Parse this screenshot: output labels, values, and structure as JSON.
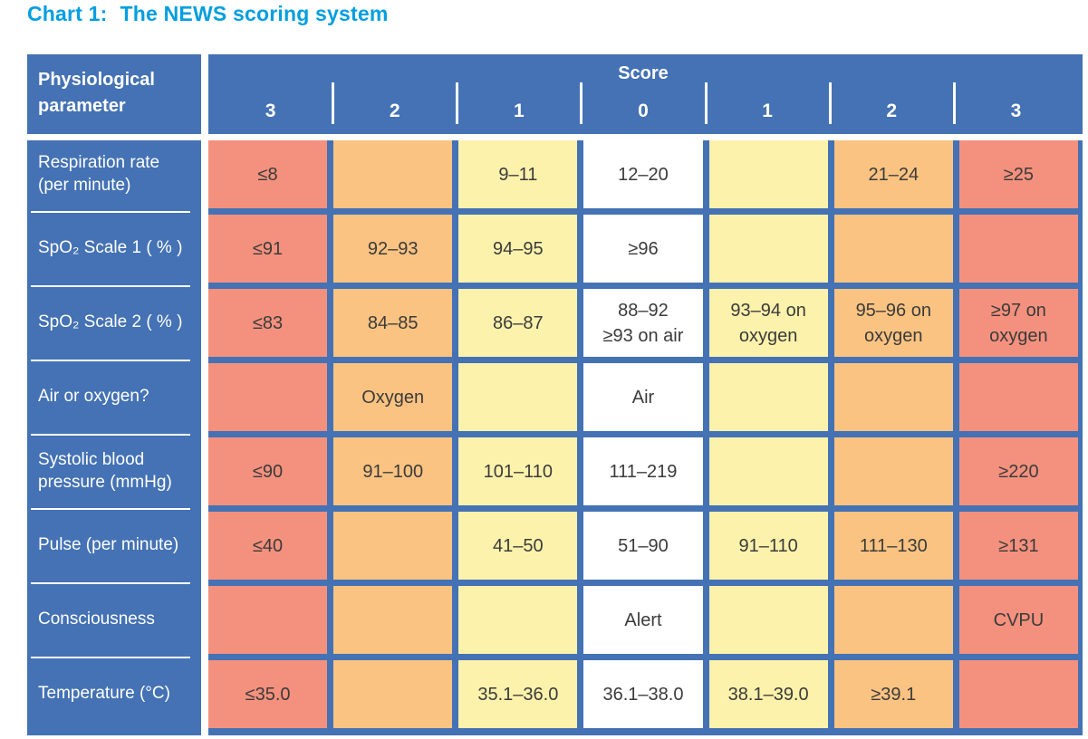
{
  "title": {
    "label": "Chart 1:",
    "text": "The NEWS scoring system"
  },
  "colors": {
    "header_blue": "#4472B4",
    "title_blue": "#009EE0",
    "score_3_red": "#F4917E",
    "score_2_orange": "#FBC382",
    "score_1_yellow": "#FCF2AC",
    "score_0_white": "#FFFFFF",
    "cell_text": "#3B3B3A"
  },
  "table": {
    "param_header": "Physiological parameter",
    "score_label": "Score",
    "score_columns": [
      "3",
      "2",
      "1",
      "0",
      "1",
      "2",
      "3"
    ],
    "rows": [
      {
        "label": "Respiration rate (per minute)",
        "cells": [
          {
            "text": "≤8",
            "color": "red"
          },
          {
            "text": "",
            "color": "orange"
          },
          {
            "text": "9–11",
            "color": "yellow"
          },
          {
            "text": "12–20",
            "color": "white"
          },
          {
            "text": "",
            "color": "yellow"
          },
          {
            "text": "21–24",
            "color": "orange"
          },
          {
            "text": "≥25",
            "color": "red"
          }
        ]
      },
      {
        "label": "SpO₂ Scale 1 ( % )",
        "cells": [
          {
            "text": "≤91",
            "color": "red"
          },
          {
            "text": "92–93",
            "color": "orange"
          },
          {
            "text": "94–95",
            "color": "yellow"
          },
          {
            "text": "≥96",
            "color": "white"
          },
          {
            "text": "",
            "color": "yellow"
          },
          {
            "text": "",
            "color": "orange"
          },
          {
            "text": "",
            "color": "red"
          }
        ]
      },
      {
        "label": "SpO₂ Scale 2 ( % )",
        "cells": [
          {
            "text": "≤83",
            "color": "red"
          },
          {
            "text": "84–85",
            "color": "orange"
          },
          {
            "text": "86–87",
            "color": "yellow"
          },
          {
            "text": "88–92\n≥93 on air",
            "color": "white"
          },
          {
            "text": "93–94 on\noxygen",
            "color": "yellow"
          },
          {
            "text": "95–96 on\noxygen",
            "color": "orange"
          },
          {
            "text": "≥97 on\noxygen",
            "color": "red"
          }
        ]
      },
      {
        "label": "Air or oxygen?",
        "cells": [
          {
            "text": "",
            "color": "red"
          },
          {
            "text": "Oxygen",
            "color": "orange"
          },
          {
            "text": "",
            "color": "yellow"
          },
          {
            "text": "Air",
            "color": "white"
          },
          {
            "text": "",
            "color": "yellow"
          },
          {
            "text": "",
            "color": "orange"
          },
          {
            "text": "",
            "color": "red"
          }
        ]
      },
      {
        "label": "Systolic blood pressure (mmHg)",
        "cells": [
          {
            "text": "≤90",
            "color": "red"
          },
          {
            "text": "91–100",
            "color": "orange"
          },
          {
            "text": "101–110",
            "color": "yellow"
          },
          {
            "text": "111–219",
            "color": "white"
          },
          {
            "text": "",
            "color": "yellow"
          },
          {
            "text": "",
            "color": "orange"
          },
          {
            "text": "≥220",
            "color": "red"
          }
        ]
      },
      {
        "label": "Pulse (per minute)",
        "cells": [
          {
            "text": "≤40",
            "color": "red"
          },
          {
            "text": "",
            "color": "orange"
          },
          {
            "text": "41–50",
            "color": "yellow"
          },
          {
            "text": "51–90",
            "color": "white"
          },
          {
            "text": "91–110",
            "color": "yellow"
          },
          {
            "text": "111–130",
            "color": "orange"
          },
          {
            "text": "≥131",
            "color": "red"
          }
        ]
      },
      {
        "label": "Consciousness",
        "cells": [
          {
            "text": "",
            "color": "red"
          },
          {
            "text": "",
            "color": "orange"
          },
          {
            "text": "",
            "color": "yellow"
          },
          {
            "text": "Alert",
            "color": "white"
          },
          {
            "text": "",
            "color": "yellow"
          },
          {
            "text": "",
            "color": "orange"
          },
          {
            "text": "CVPU",
            "color": "red"
          }
        ]
      },
      {
        "label": "Temperature (°C)",
        "cells": [
          {
            "text": "≤35.0",
            "color": "red"
          },
          {
            "text": "",
            "color": "orange"
          },
          {
            "text": "35.1–36.0",
            "color": "yellow"
          },
          {
            "text": "36.1–38.0",
            "color": "white"
          },
          {
            "text": "38.1–39.0",
            "color": "yellow"
          },
          {
            "text": "≥39.1",
            "color": "orange"
          },
          {
            "text": "",
            "color": "red"
          }
        ]
      }
    ]
  }
}
